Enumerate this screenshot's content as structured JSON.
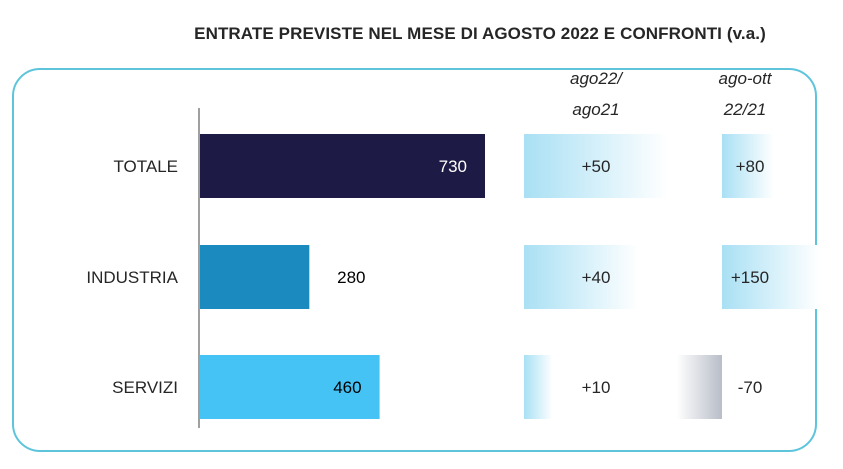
{
  "chart_data": {
    "type": "bar",
    "orientation": "horizontal",
    "title": "ENTRATE PREVISTE NEL MESE DI  AGOSTO 2022 E CONFRONTI (v.a.)",
    "categories": [
      "TOTALE",
      "INDUSTRIA",
      "SERVIZI"
    ],
    "values": [
      730,
      280,
      460
    ],
    "value_labels": [
      "730",
      "280",
      "460"
    ],
    "bar_colors": [
      "#1e1a46",
      "#1b8bbf",
      "#45c3f5"
    ],
    "xlim": [
      0,
      730
    ],
    "comparisons": [
      {
        "name": "ago22/ago21",
        "header_lines": [
          "ago22/",
          "ago21"
        ],
        "values": [
          50,
          40,
          10
        ],
        "labels": [
          "+50",
          "+40",
          "+10"
        ]
      },
      {
        "name": "ago-ott 22/21",
        "header_lines": [
          "ago-ott",
          "22/21"
        ],
        "values": [
          80,
          150,
          -70
        ],
        "labels": [
          "+80",
          "+150",
          "-70"
        ]
      }
    ],
    "colors": {
      "positive_gradient_start": "#a9e0f4",
      "positive_gradient_end": "#ffffff",
      "negative_gradient_start": "#ffffff",
      "negative_gradient_end": "#b8bdc8",
      "axis": "#a0a0a0",
      "frame": "#5ec4dc"
    }
  }
}
